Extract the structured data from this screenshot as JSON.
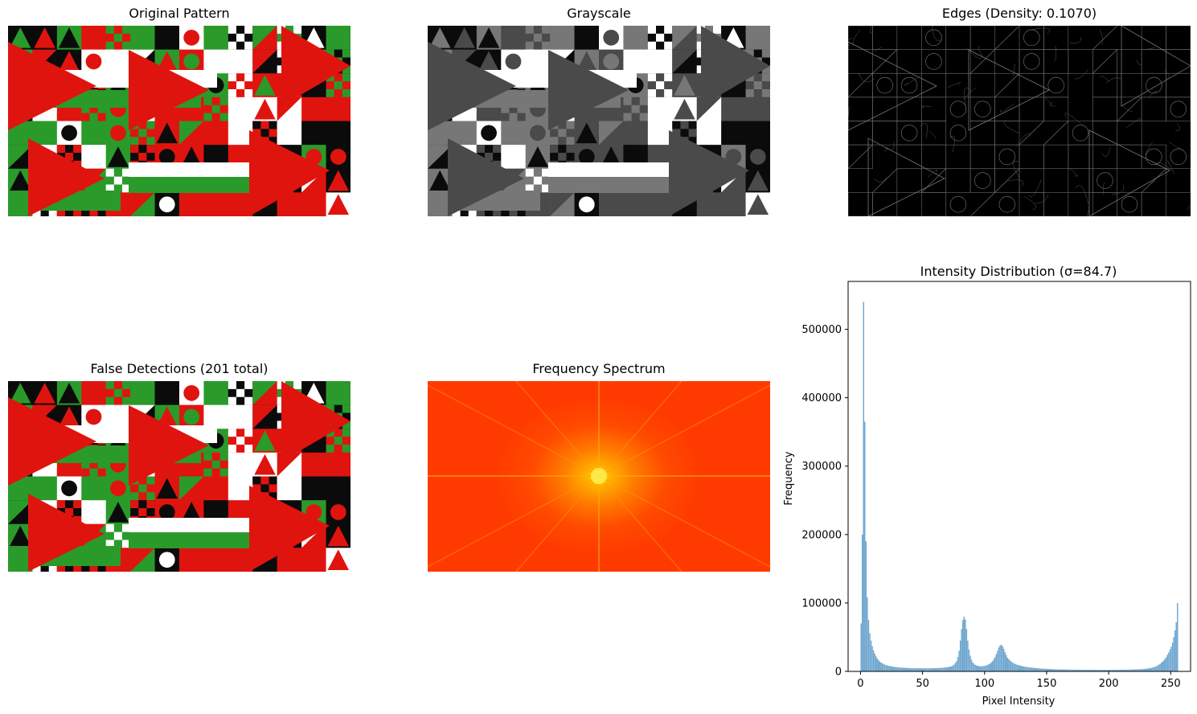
{
  "panels": {
    "original": {
      "title": "Original Pattern"
    },
    "grayscale": {
      "title": "Grayscale"
    },
    "edges": {
      "title": "Edges (Density: 0.1070)"
    },
    "false_detections": {
      "title": "False Detections (201 total)"
    },
    "frequency": {
      "title": "Frequency Spectrum"
    },
    "histogram": {
      "title": "Intensity Distribution (σ=84.7)"
    }
  },
  "colors": {
    "pattern_red": "#e0140f",
    "pattern_green": "#2a9a2a",
    "pattern_white": "#ffffff",
    "pattern_black": "#0b0b0b",
    "histogram_bar": "#6fa6cf",
    "spectrum_center": "#ffe000",
    "spectrum_edge": "#ff3a00"
  },
  "chart_data": {
    "type": "bar",
    "title": "Intensity Distribution (σ=84.7)",
    "xlabel": "Pixel Intensity",
    "ylabel": "Frequency",
    "xlim": [
      -10,
      266
    ],
    "ylim": [
      0,
      570000
    ],
    "xticks": [
      0,
      50,
      100,
      150,
      200,
      250
    ],
    "yticks": [
      0,
      100000,
      200000,
      300000,
      400000,
      500000
    ],
    "bins": [
      [
        0,
        70000
      ],
      [
        1,
        200000
      ],
      [
        2,
        540000
      ],
      [
        3,
        365000
      ],
      [
        4,
        190000
      ],
      [
        5,
        108000
      ],
      [
        6,
        75000
      ],
      [
        7,
        56000
      ],
      [
        8,
        45000
      ],
      [
        9,
        37000
      ],
      [
        10,
        31000
      ],
      [
        11,
        26000
      ],
      [
        12,
        22000
      ],
      [
        13,
        19000
      ],
      [
        14,
        16500
      ],
      [
        15,
        14500
      ],
      [
        16,
        13000
      ],
      [
        17,
        12000
      ],
      [
        18,
        11000
      ],
      [
        19,
        10000
      ],
      [
        20,
        9200
      ],
      [
        22,
        8200
      ],
      [
        24,
        7400
      ],
      [
        26,
        6800
      ],
      [
        28,
        6300
      ],
      [
        30,
        5900
      ],
      [
        33,
        5400
      ],
      [
        36,
        5100
      ],
      [
        40,
        4800
      ],
      [
        45,
        4600
      ],
      [
        50,
        4500
      ],
      [
        55,
        4500
      ],
      [
        60,
        4700
      ],
      [
        65,
        5200
      ],
      [
        70,
        6200
      ],
      [
        73,
        7500
      ],
      [
        75,
        10000
      ],
      [
        77,
        15000
      ],
      [
        78,
        21000
      ],
      [
        79,
        30000
      ],
      [
        80,
        45000
      ],
      [
        81,
        62000
      ],
      [
        82,
        75000
      ],
      [
        83,
        80000
      ],
      [
        84,
        76000
      ],
      [
        85,
        62000
      ],
      [
        86,
        45000
      ],
      [
        87,
        32000
      ],
      [
        88,
        23000
      ],
      [
        89,
        17000
      ],
      [
        90,
        13000
      ],
      [
        92,
        9500
      ],
      [
        94,
        8000
      ],
      [
        96,
        7500
      ],
      [
        98,
        7600
      ],
      [
        100,
        8200
      ],
      [
        102,
        9500
      ],
      [
        104,
        11500
      ],
      [
        106,
        15000
      ],
      [
        108,
        21000
      ],
      [
        110,
        30000
      ],
      [
        111,
        35000
      ],
      [
        112,
        38000
      ],
      [
        113,
        39000
      ],
      [
        114,
        37000
      ],
      [
        115,
        33000
      ],
      [
        116,
        28000
      ],
      [
        117,
        24000
      ],
      [
        118,
        20000
      ],
      [
        120,
        16000
      ],
      [
        122,
        13000
      ],
      [
        124,
        11000
      ],
      [
        126,
        9500
      ],
      [
        128,
        8500
      ],
      [
        130,
        7500
      ],
      [
        135,
        6000
      ],
      [
        140,
        5000
      ],
      [
        145,
        4200
      ],
      [
        150,
        3600
      ],
      [
        155,
        3200
      ],
      [
        160,
        2900
      ],
      [
        170,
        2500
      ],
      [
        180,
        2400
      ],
      [
        190,
        2300
      ],
      [
        200,
        2300
      ],
      [
        210,
        2400
      ],
      [
        220,
        2800
      ],
      [
        228,
        3500
      ],
      [
        234,
        5000
      ],
      [
        238,
        7500
      ],
      [
        241,
        11000
      ],
      [
        244,
        16000
      ],
      [
        246,
        21000
      ],
      [
        248,
        28000
      ],
      [
        250,
        36000
      ],
      [
        251,
        42000
      ],
      [
        252,
        50000
      ],
      [
        253,
        60000
      ],
      [
        254,
        72000
      ],
      [
        255,
        100000
      ]
    ]
  }
}
